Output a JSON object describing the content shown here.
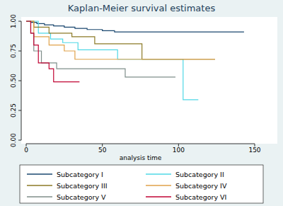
{
  "chart_data": {
    "type": "step",
    "title": "Kaplan-Meier survival estimates",
    "x_label": "analysis time",
    "xlim": [
      0,
      150
    ],
    "xticks": [
      0,
      50,
      100,
      150
    ],
    "ylim": [
      0,
      1
    ],
    "yticks": [
      {
        "value": 0,
        "label": "0.00"
      },
      {
        "value": 0.25,
        "label": "0.25"
      },
      {
        "value": 0.5,
        "label": "0.50"
      },
      {
        "value": 0.75,
        "label": "0.75"
      },
      {
        "value": 1,
        "label": "1.00"
      }
    ],
    "grid": false,
    "legend": "bottom",
    "series": [
      {
        "name": "Subcategory I",
        "color": "#1a476f",
        "x": [
          0,
          3,
          7,
          12,
          18,
          25,
          32,
          40,
          50,
          58,
          143
        ],
        "values": [
          1,
          0.99,
          0.98,
          0.97,
          0.96,
          0.95,
          0.94,
          0.93,
          0.92,
          0.91,
          0.91
        ]
      },
      {
        "name": "Subcategory II",
        "color": "#4fd8e6",
        "x": [
          0,
          8,
          16,
          24,
          34,
          60,
          103,
          113
        ],
        "values": [
          1,
          0.9,
          0.85,
          0.82,
          0.76,
          0.68,
          0.34,
          0.34
        ]
      },
      {
        "name": "Subcategory III",
        "color": "#8c7a26",
        "x": [
          0,
          5,
          15,
          30,
          45,
          76,
          124
        ],
        "values": [
          1,
          0.95,
          0.9,
          0.87,
          0.81,
          0.68,
          0.68
        ]
      },
      {
        "name": "Subcategory IV",
        "color": "#e0a24a",
        "x": [
          0,
          5,
          15,
          25,
          32,
          124
        ],
        "values": [
          1,
          0.87,
          0.8,
          0.75,
          0.68,
          0.68
        ]
      },
      {
        "name": "Subcategory V",
        "color": "#7f8e8a",
        "x": [
          0,
          3,
          5,
          10,
          20,
          65,
          98
        ],
        "values": [
          1,
          0.9,
          0.75,
          0.65,
          0.6,
          0.53,
          0.53
        ]
      },
      {
        "name": "Subcategory VI",
        "color": "#c10534",
        "x": [
          0,
          3,
          5,
          8,
          15,
          18,
          35
        ],
        "values": [
          1,
          0.9,
          0.8,
          0.65,
          0.6,
          0.49,
          0.49
        ]
      }
    ]
  }
}
